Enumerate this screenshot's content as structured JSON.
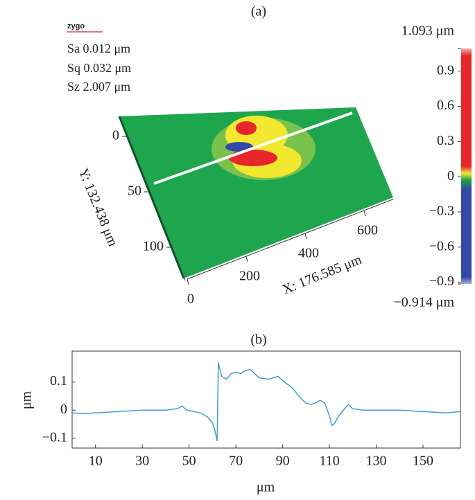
{
  "chart_data": [
    {
      "type": "surface",
      "title": "(a)",
      "logo": "zygo",
      "stats": [
        "Sa 0.012 μm",
        "Sq 0.032 μm",
        "Sz 2.007 μm"
      ],
      "xlabel": "X: 176.585 μm",
      "ylabel": "Y: 132.438 μm",
      "xlim": [
        0,
        700
      ],
      "ylim": [
        0,
        130
      ],
      "xticks": [
        0,
        200,
        400,
        600
      ],
      "yticks": [
        0,
        50,
        100
      ],
      "clim": [
        -0.914,
        1.093
      ],
      "clim_labels": [
        "−0.914 μm",
        "1.093 μm"
      ],
      "cticks": [
        0.9,
        0.6,
        0.3,
        0,
        {
          "value": -0.3,
          "label": "−0.3"
        },
        {
          "value": -0.6,
          "label": "−0.6"
        },
        {
          "value": -0.9,
          "label": "−0.9"
        }
      ]
    },
    {
      "type": "line",
      "title": "(b)",
      "xlabel": "μm",
      "ylabel": "μm",
      "color": "#3a9fd0",
      "xlim": [
        0,
        166
      ],
      "ylim": [
        -0.135,
        0.21
      ],
      "xticks": [
        10,
        30,
        50,
        70,
        90,
        110,
        130,
        150
      ],
      "yticks": [
        0.1,
        0,
        {
          "value": -0.1,
          "label": "−0.1"
        }
      ],
      "x": [
        0,
        5,
        10,
        20,
        30,
        40,
        45,
        47,
        49,
        52,
        55,
        58,
        60,
        61,
        62,
        62.5,
        63,
        64,
        66,
        68,
        70,
        72,
        74,
        76,
        78,
        80,
        84,
        88,
        90,
        94,
        96,
        98,
        100,
        102,
        104,
        106,
        108,
        110,
        111,
        112,
        114,
        116,
        117,
        118,
        120,
        124,
        130,
        140,
        150,
        160,
        166
      ],
      "values": [
        -0.01,
        -0.012,
        -0.01,
        -0.005,
        0,
        0,
        0.005,
        0.015,
        0,
        -0.005,
        -0.01,
        -0.025,
        -0.045,
        -0.07,
        -0.11,
        0.17,
        0.15,
        0.12,
        0.11,
        0.13,
        0.135,
        0.13,
        0.14,
        0.145,
        0.13,
        0.115,
        0.11,
        0.12,
        0.105,
        0.08,
        0.06,
        0.04,
        0.025,
        0.02,
        0.025,
        0.035,
        0.025,
        -0.02,
        -0.055,
        -0.05,
        -0.02,
        0,
        0.01,
        0.02,
        0.005,
        0,
        0,
        0,
        -0.005,
        -0.01,
        -0.005
      ]
    }
  ]
}
